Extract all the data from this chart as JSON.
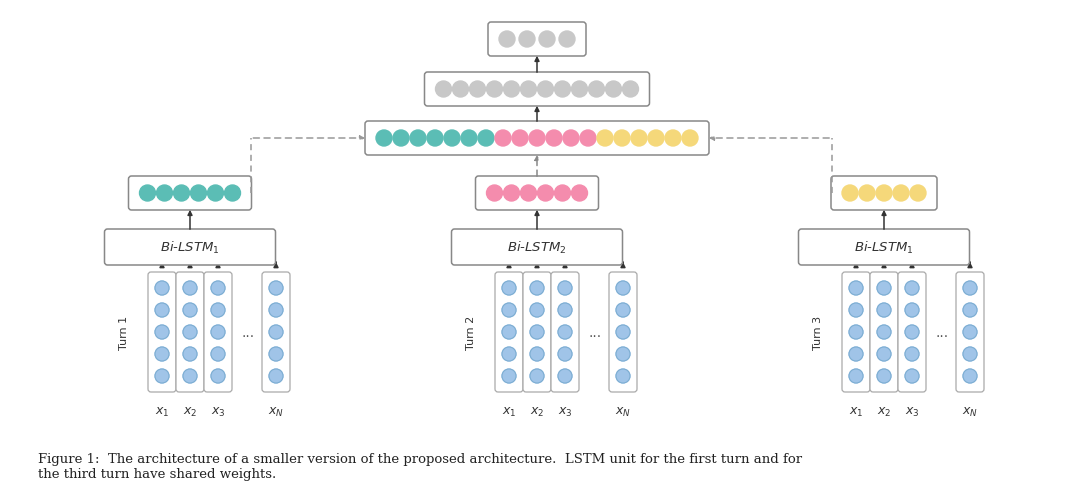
{
  "bg_color": "#ffffff",
  "fig_width": 10.74,
  "fig_height": 5.02,
  "bilstm_labels": [
    "Bi-LSTM$_1$",
    "Bi-LSTM$_2$",
    "Bi-LSTM$_1$"
  ],
  "turn_labels": [
    "Turn 1",
    "Turn 2",
    "Turn 3"
  ],
  "x_labels": [
    "$x_1$",
    "$x_2$",
    "$x_3$",
    "$x_N$"
  ],
  "teal_color": "#5bbdb5",
  "pink_color": "#f48cad",
  "yellow_color": "#f5d87a",
  "gray_color": "#c8c8c8",
  "blue_dot_color": "#a0c4e8",
  "blue_dot_edge": "#7aacd0",
  "turn1_n": 6,
  "turn2_n": 6,
  "turn3_n": 5,
  "concat_teal": 7,
  "concat_pink": 6,
  "concat_yellow": 6,
  "fc_n": 12,
  "out_n": 4,
  "caption": "Figure 1:  The architecture of a smaller version of the proposed architecture.  LSTM unit for the first turn and for\nthe third turn have shared weights."
}
